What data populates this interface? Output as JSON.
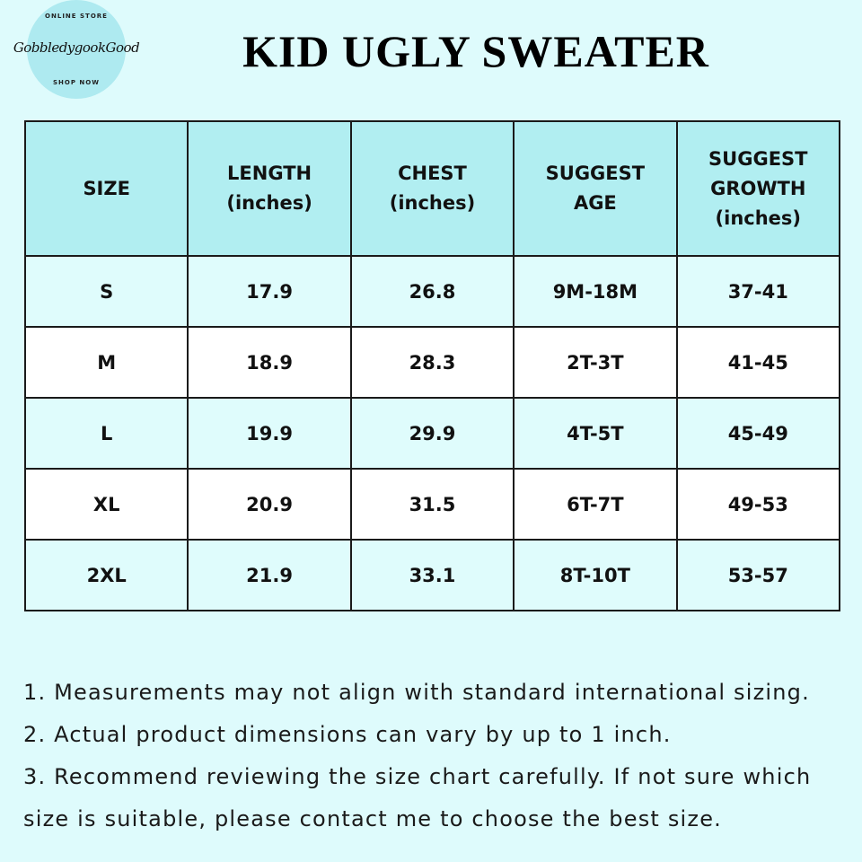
{
  "logo": {
    "top_text": "ONLINE STORE",
    "script_text": "GobbledygookGood",
    "bottom_text": "SHOP NOW"
  },
  "title": "KID UGLY SWEATER",
  "colors": {
    "background": "#defbfc",
    "header": "#b1eef1",
    "row_alt": "#dffcfc",
    "row_plain": "#ffffff"
  },
  "table": {
    "headers": [
      "SIZE",
      "LENGTH\n(inches)",
      "CHEST\n(inches)",
      "SUGGEST\nAGE",
      "SUGGEST\nGROWTH\n(inches)"
    ],
    "rows": [
      [
        "S",
        "17.9",
        "26.8",
        "9M-18M",
        "37-41"
      ],
      [
        "M",
        "18.9",
        "28.3",
        "2T-3T",
        "41-45"
      ],
      [
        "L",
        "19.9",
        "29.9",
        "4T-5T",
        "45-49"
      ],
      [
        "XL",
        "20.9",
        "31.5",
        "6T-7T",
        "49-53"
      ],
      [
        "2XL",
        "21.9",
        "33.1",
        "8T-10T",
        "53-57"
      ]
    ]
  },
  "notes": [
    "1. Measurements may not align with standard international sizing.",
    "2. Actual product dimensions can vary by up to 1 inch.",
    "3. Recommend reviewing the size chart carefully. If not sure which size is suitable, please contact me to choose the best size."
  ]
}
